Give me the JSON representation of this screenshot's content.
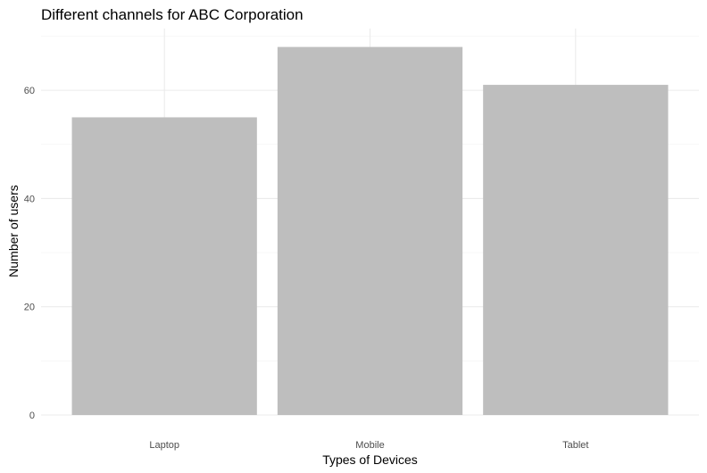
{
  "chart_data": {
    "type": "bar",
    "title": "Different channels for ABC Corporation",
    "xlabel": "Types of Devices",
    "ylabel": "Number of users",
    "categories": [
      "Laptop",
      "Mobile",
      "Tablet"
    ],
    "values": [
      55,
      68,
      61
    ],
    "ylim": [
      0,
      71.4
    ],
    "yticks": [
      0,
      20,
      40,
      60
    ],
    "grid": true,
    "legend": "none",
    "bar_color": "#bebebe"
  }
}
